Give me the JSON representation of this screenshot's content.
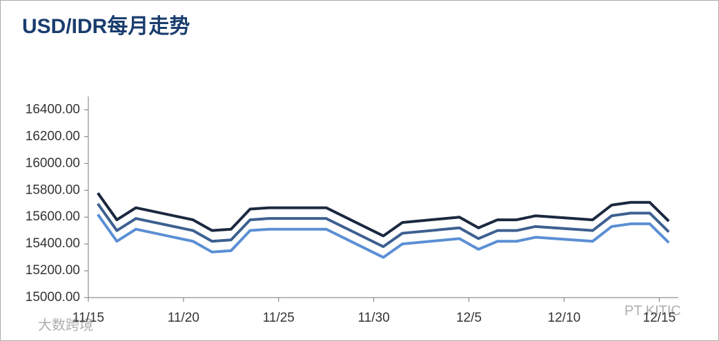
{
  "chart_data": {
    "type": "line",
    "title": "USD/IDR每月走势",
    "x": [
      0.5,
      1.5,
      2.5,
      5.5,
      6.5,
      7.5,
      8.5,
      9.5,
      12.5,
      13.5,
      15.5,
      16.5,
      19.5,
      20.5,
      21.5,
      22.5,
      23.5,
      26.5,
      27.5,
      28.5,
      29.5,
      30.5
    ],
    "series": [
      {
        "color": "#1b2840",
        "values": [
          15780,
          15580,
          15670,
          15580,
          15500,
          15510,
          15660,
          15670,
          15670,
          15600,
          15460,
          15560,
          15600,
          15520,
          15580,
          15580,
          15610,
          15580,
          15690,
          15710,
          15710,
          15570
        ]
      },
      {
        "color": "#3d6090",
        "values": [
          15700,
          15500,
          15590,
          15500,
          15420,
          15430,
          15580,
          15590,
          15590,
          15520,
          15380,
          15480,
          15520,
          15440,
          15500,
          15500,
          15530,
          15500,
          15610,
          15630,
          15630,
          15490
        ]
      },
      {
        "color": "#5b8fd4",
        "values": [
          15620,
          15420,
          15510,
          15420,
          15340,
          15350,
          15500,
          15510,
          15510,
          15440,
          15300,
          15400,
          15440,
          15360,
          15420,
          15420,
          15450,
          15420,
          15530,
          15550,
          15550,
          15410
        ]
      }
    ],
    "xlim": [
      0,
      31
    ],
    "xticks": [
      {
        "value": 0,
        "label": "11/15"
      },
      {
        "value": 5,
        "label": "11/20"
      },
      {
        "value": 10,
        "label": "11/25"
      },
      {
        "value": 15,
        "label": "11/30"
      },
      {
        "value": 20,
        "label": "12/5"
      },
      {
        "value": 25,
        "label": "12/10"
      },
      {
        "value": 30,
        "label": "12/15"
      }
    ],
    "ylim": [
      15000,
      16500
    ],
    "yticks": [
      {
        "value": 15000,
        "label": "15000.00"
      },
      {
        "value": 15200,
        "label": "15200.00"
      },
      {
        "value": 15400,
        "label": "15400.00"
      },
      {
        "value": 15600,
        "label": "15600.00"
      },
      {
        "value": 15800,
        "label": "15800.00"
      },
      {
        "value": 16000,
        "label": "16000.00"
      },
      {
        "value": 16200,
        "label": "16200.00"
      },
      {
        "value": 16400,
        "label": "16400.00"
      }
    ],
    "watermarks": [
      "PT KITIC",
      "大数跨境"
    ]
  }
}
